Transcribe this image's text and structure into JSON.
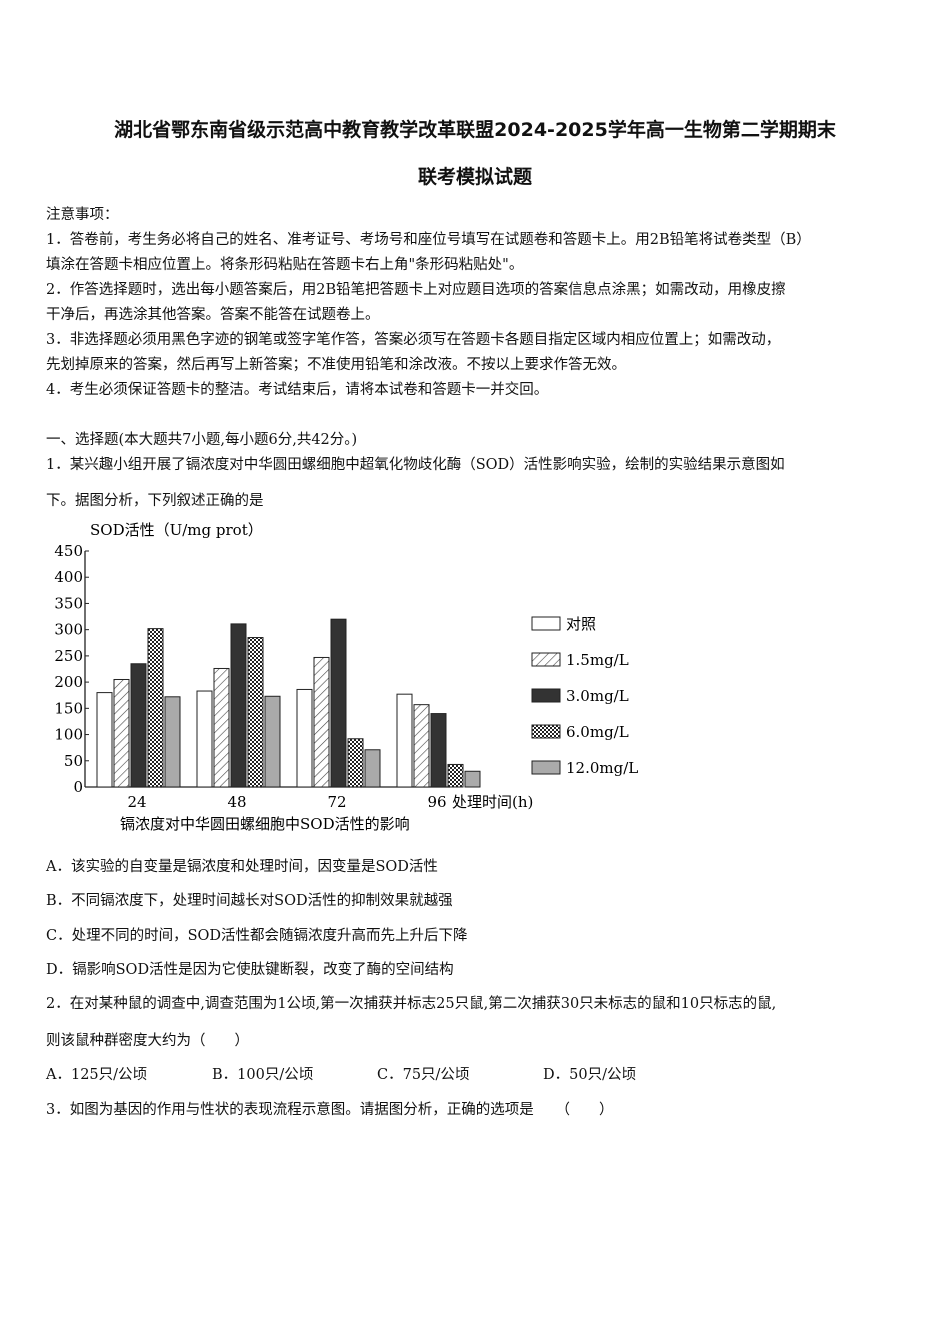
{
  "title_line1": "湖北省鄂东南省级示范高中教育教学改革联盟2024-2025学年高一生物第二学期期末",
  "title_line2": "联考模拟试题",
  "notice": {
    "heading": "注意事项：",
    "lines": [
      "1．答卷前，考生务必将自己的姓名、准考证号、考场号和座位号填写在试题卷和答题卡上。用2B铅笔将试卷类型（B）",
      "填涂在答题卡相应位置上。将条形码粘贴在答题卡右上角\"条形码粘贴处\"。",
      "2．作答选择题时，选出每小题答案后，用2B铅笔把答题卡上对应题目选项的答案信息点涂黑；如需改动，用橡皮擦",
      "干净后，再选涂其他答案。答案不能答在试题卷上。",
      "3．非选择题必须用黑色字迹的钢笔或签字笔作答，答案必须写在答题卡各题目指定区域内相应位置上；如需改动，",
      "先划掉原来的答案，然后再写上新答案；不准使用铅笔和涂改液。不按以上要求作答无效。",
      "4．考生必须保证答题卡的整洁。考试结束后，请将本试卷和答题卡一并交回。"
    ]
  },
  "section": "一、选择题(本大题共7小题,每小题6分,共42分。)",
  "q1": {
    "stem1": "1．某兴趣小组开展了镉浓度对中华圆田螺细胞中超氧化物歧化酶（SOD）活性影响实验，绘制的实验结果示意图如",
    "stem2": "下。据图分析，下列叙述正确的是",
    "options": [
      "A．该实验的自变量是镉浓度和处理时间，因变量是SOD活性",
      "B．不同镉浓度下，处理时间越长对SOD活性的抑制效果就越强",
      "C．处理不同的时间，SOD活性都会随镉浓度升高而先上升后下降",
      "D．镉影响SOD活性是因为它使肽键断裂，改变了酶的空间结构"
    ]
  },
  "q2": {
    "stem1": "2．在对某种鼠的调查中,调查范围为1公顷,第一次捕获并标志25只鼠,第二次捕获30只未标志的鼠和10只标志的鼠,",
    "stem2": "则该鼠种群密度大约为（　　）",
    "options": [
      "A．125只/公顷",
      "B．100只/公顷",
      "C．75只/公顷",
      "D．50只/公顷"
    ]
  },
  "q3": {
    "stem": "3．如图为基因的作用与性状的表现流程示意图。请据图分析，正确的选项是　　（　　）"
  },
  "chart_data": {
    "type": "bar",
    "title": "镉浓度对中华圆田螺细胞中SOD活性的影响",
    "ylabel": "SOD活性（U/mg prot）",
    "xlabel": "处理时间(h)",
    "categories": [
      "24",
      "48",
      "72",
      "96"
    ],
    "ylim": [
      0,
      450
    ],
    "yticks": [
      "0",
      "50",
      "100",
      "150",
      "200",
      "250",
      "300",
      "350",
      "400",
      "450"
    ],
    "legend_position": "right",
    "grid": false,
    "series": [
      {
        "name": "对照",
        "pattern": "white",
        "values": [
          180,
          183,
          186,
          177
        ]
      },
      {
        "name": "1.5mg/L",
        "pattern": "diagonal",
        "values": [
          205,
          226,
          247,
          157
        ]
      },
      {
        "name": "3.0mg/L",
        "pattern": "dark",
        "values": [
          235,
          311,
          320,
          140
        ]
      },
      {
        "name": "6.0mg/L",
        "pattern": "crosshatch",
        "values": [
          302,
          285,
          92,
          43
        ]
      },
      {
        "name": "12.0mg/L",
        "pattern": "gray",
        "values": [
          172,
          173,
          71,
          30
        ]
      }
    ]
  }
}
